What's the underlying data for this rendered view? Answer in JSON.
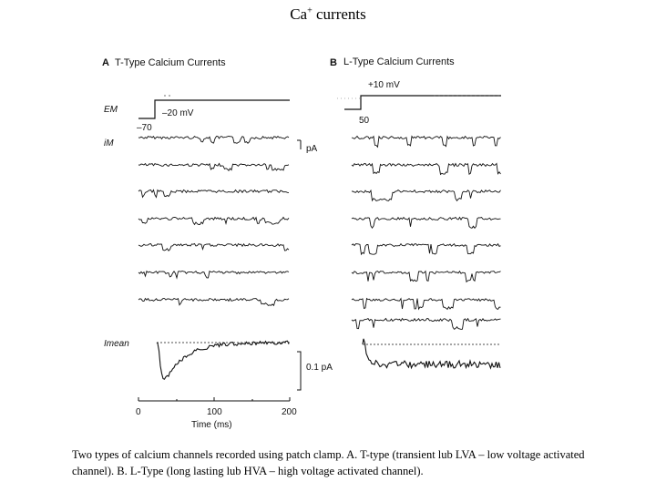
{
  "slide": {
    "title_main": "Ca",
    "title_sup": "+",
    "title_rest": " currents",
    "caption": "Two types of calcium channels recorded using patch clamp. A. T-type (transient lub LVA – low voltage activated channel). B. L-Type (long lasting lub HVA – high voltage activated channel)."
  },
  "figure": {
    "panel_a": {
      "letter": "A",
      "title": "T-Type Calcium Currents",
      "v_label": "–20 mV",
      "v_hold": "–70"
    },
    "panel_b": {
      "letter": "B",
      "title": "L-Type Calcium Currents",
      "v_label": "+10 mV",
      "v_hold": "50"
    },
    "em_label": "EM",
    "im_label": "iM",
    "imean_label": "Imean",
    "pa_label": "pA",
    "scale_label": "0.1 pA",
    "xaxis": {
      "ticks": [
        "0",
        "100",
        "200"
      ],
      "label": "Time (ms)"
    }
  }
}
